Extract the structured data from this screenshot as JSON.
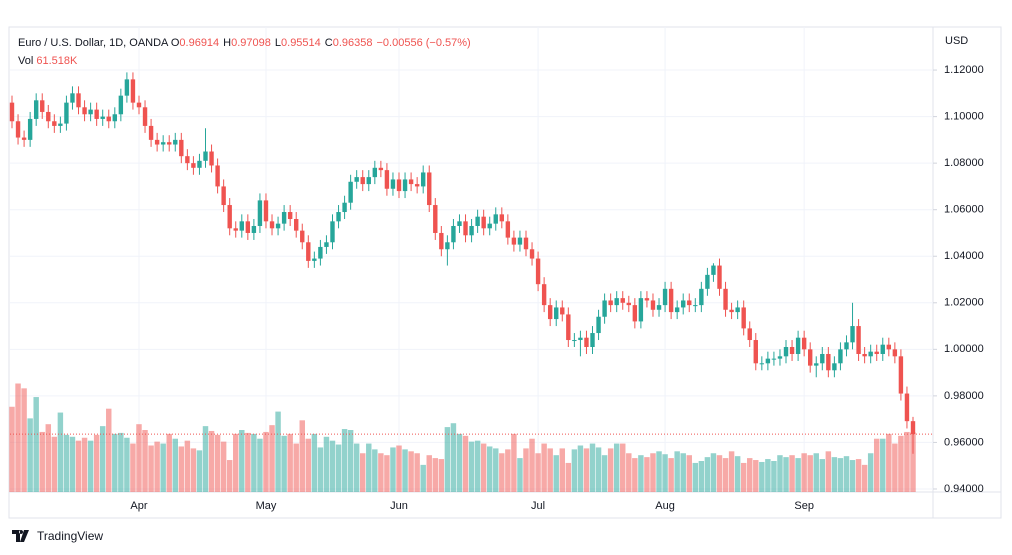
{
  "chart_data": {
    "type": "candlestick",
    "title": "Euro / U.S. Dollar, 1D, OANDA",
    "legend_labels": {
      "open": "O",
      "high": "H",
      "low": "L",
      "close": "C"
    },
    "change_label": "−0.00556 (−0.57%)",
    "volume_title": "Vol",
    "volume_value_label": "61.518K",
    "price_axis_unit": "USD",
    "brand": "TradingView",
    "up_color": "#26a69a",
    "down_color": "#ef5350",
    "grid": true,
    "ylim": [
      0.9387,
      1.1385
    ],
    "volume_ylim": [
      0,
      480
    ],
    "yticks": [
      {
        "value": 0.94,
        "label": "0.94000"
      },
      {
        "value": 0.96,
        "label": "0.96000"
      },
      {
        "value": 0.98,
        "label": "0.98000"
      },
      {
        "value": 1.0,
        "label": "1.00000"
      },
      {
        "value": 1.02,
        "label": "1.02000"
      },
      {
        "value": 1.04,
        "label": "1.04000"
      },
      {
        "value": 1.06,
        "label": "1.06000"
      },
      {
        "value": 1.08,
        "label": "1.08000"
      },
      {
        "value": 1.1,
        "label": "1.10000"
      },
      {
        "value": 1.12,
        "label": "1.12000"
      }
    ],
    "categories": [
      null,
      null,
      null,
      null,
      null,
      null,
      null,
      null,
      null,
      null,
      null,
      null,
      null,
      null,
      null,
      null,
      null,
      null,
      null,
      null,
      null,
      "Apr",
      null,
      null,
      null,
      null,
      null,
      null,
      null,
      null,
      null,
      null,
      null,
      null,
      null,
      null,
      null,
      null,
      null,
      null,
      null,
      null,
      "May",
      null,
      null,
      null,
      null,
      null,
      null,
      null,
      null,
      null,
      null,
      null,
      null,
      null,
      null,
      null,
      null,
      null,
      null,
      null,
      null,
      null,
      "Jun",
      null,
      null,
      null,
      null,
      null,
      null,
      null,
      null,
      null,
      null,
      null,
      null,
      null,
      null,
      null,
      null,
      null,
      null,
      null,
      null,
      null,
      null,
      "Jul",
      null,
      null,
      null,
      null,
      null,
      null,
      null,
      null,
      null,
      null,
      null,
      null,
      null,
      null,
      null,
      null,
      null,
      null,
      null,
      null,
      "Aug",
      null,
      null,
      null,
      null,
      null,
      null,
      null,
      null,
      null,
      null,
      null,
      null,
      null,
      null,
      null,
      null,
      null,
      null,
      null,
      null,
      null,
      null,
      "Sep",
      null,
      null,
      null,
      null,
      null,
      null,
      null,
      null,
      null,
      null,
      null,
      null,
      null,
      null,
      null,
      null,
      null,
      null
    ],
    "open": [
      1.106,
      1.098,
      1.091,
      1.09,
      1.099,
      1.107,
      1.102,
      1.098,
      1.096,
      1.097,
      1.106,
      1.11,
      1.104,
      1.101,
      1.103,
      1.099,
      1.1,
      1.098,
      1.101,
      1.109,
      1.116,
      1.106,
      1.104,
      1.096,
      1.09,
      1.088,
      1.089,
      1.088,
      1.09,
      1.083,
      1.08,
      1.078,
      1.081,
      1.085,
      1.079,
      1.07,
      1.062,
      1.052,
      1.051,
      1.055,
      1.05,
      1.053,
      1.064,
      1.055,
      1.052,
      1.054,
      1.059,
      1.056,
      1.051,
      1.046,
      1.038,
      1.039,
      1.044,
      1.046,
      1.055,
      1.059,
      1.063,
      1.072,
      1.074,
      1.071,
      1.074,
      1.078,
      1.077,
      1.069,
      1.073,
      1.068,
      1.073,
      1.071,
      1.07,
      1.076,
      1.062,
      1.05,
      1.043,
      1.046,
      1.053,
      1.055,
      1.049,
      1.053,
      1.057,
      1.052,
      1.054,
      1.058,
      1.055,
      1.048,
      1.045,
      1.048,
      1.043,
      1.039,
      1.028,
      1.019,
      1.013,
      1.018,
      1.015,
      1.004,
      1.004,
      1.005,
      1.001,
      1.007,
      1.014,
      1.021,
      1.019,
      1.022,
      1.02,
      1.019,
      1.012,
      1.022,
      1.021,
      1.017,
      1.019,
      1.026,
      1.016,
      1.018,
      1.021,
      1.019,
      1.019,
      1.026,
      1.032,
      1.036,
      1.026,
      1.017,
      1.016,
      1.018,
      1.009,
      1.004,
      0.994,
      0.994,
      0.996,
      0.996,
      0.997,
      1.001,
      0.998,
      1.005,
      1.0,
      0.993,
      0.994,
      0.998,
      0.991,
      0.994,
      1.0,
      1.003,
      1.01,
      0.998,
      0.997,
      0.999,
      0.998,
      1.002,
      1.0,
      0.997,
      0.981,
      0.96914
    ],
    "high": [
      1.109,
      1.101,
      1.094,
      1.102,
      1.11,
      1.11,
      1.105,
      1.101,
      1.1,
      1.109,
      1.113,
      1.113,
      1.107,
      1.106,
      1.106,
      1.103,
      1.103,
      1.104,
      1.112,
      1.119,
      1.119,
      1.109,
      1.107,
      1.099,
      1.093,
      1.092,
      1.092,
      1.093,
      1.093,
      1.086,
      1.083,
      1.084,
      1.095,
      1.088,
      1.082,
      1.073,
      1.065,
      1.055,
      1.058,
      1.058,
      1.056,
      1.067,
      1.067,
      1.058,
      1.057,
      1.062,
      1.062,
      1.059,
      1.054,
      1.049,
      1.042,
      1.047,
      1.049,
      1.058,
      1.062,
      1.066,
      1.075,
      1.077,
      1.077,
      1.077,
      1.081,
      1.081,
      1.08,
      1.076,
      1.076,
      1.076,
      1.076,
      1.074,
      1.079,
      1.079,
      1.065,
      1.053,
      1.049,
      1.056,
      1.058,
      1.058,
      1.056,
      1.06,
      1.06,
      1.057,
      1.061,
      1.061,
      1.058,
      1.051,
      1.051,
      1.051,
      1.046,
      1.042,
      1.031,
      1.022,
      1.021,
      1.021,
      1.018,
      1.007,
      1.008,
      1.008,
      1.01,
      1.017,
      1.024,
      1.024,
      1.025,
      1.025,
      1.023,
      1.022,
      1.025,
      1.025,
      1.024,
      1.022,
      1.029,
      1.029,
      1.021,
      1.024,
      1.024,
      1.022,
      1.029,
      1.035,
      1.037,
      1.039,
      1.029,
      1.02,
      1.021,
      1.021,
      1.012,
      1.007,
      0.997,
      0.999,
      0.999,
      1.0,
      1.004,
      1.004,
      1.008,
      1.008,
      1.003,
      0.997,
      1.001,
      1.001,
      0.997,
      1.003,
      1.006,
      1.02,
      1.013,
      1.001,
      1.002,
      1.002,
      1.005,
      1.005,
      1.003,
      1.0,
      0.984,
      0.97098
    ],
    "low": [
      1.095,
      1.088,
      1.087,
      1.087,
      1.096,
      1.099,
      1.095,
      1.093,
      1.093,
      1.094,
      1.103,
      1.101,
      1.098,
      1.098,
      1.096,
      1.096,
      1.095,
      1.095,
      1.098,
      1.106,
      1.103,
      1.101,
      1.093,
      1.087,
      1.085,
      1.085,
      1.085,
      1.085,
      1.08,
      1.077,
      1.075,
      1.075,
      1.078,
      1.076,
      1.067,
      1.059,
      1.049,
      1.048,
      1.048,
      1.047,
      1.047,
      1.05,
      1.052,
      1.049,
      1.049,
      1.051,
      1.053,
      1.048,
      1.043,
      1.035,
      1.035,
      1.036,
      1.041,
      1.043,
      1.052,
      1.056,
      1.06,
      1.069,
      1.068,
      1.068,
      1.071,
      1.074,
      1.066,
      1.066,
      1.065,
      1.065,
      1.068,
      1.067,
      1.067,
      1.059,
      1.047,
      1.04,
      1.036,
      1.043,
      1.05,
      1.046,
      1.046,
      1.05,
      1.049,
      1.049,
      1.051,
      1.052,
      1.045,
      1.042,
      1.042,
      1.04,
      1.036,
      1.025,
      1.016,
      1.01,
      1.01,
      1.012,
      1.001,
      1.001,
      0.997,
      0.998,
      0.998,
      1.004,
      1.011,
      1.016,
      1.016,
      1.017,
      1.016,
      1.009,
      1.009,
      1.018,
      1.014,
      1.014,
      1.016,
      1.013,
      1.013,
      1.015,
      1.016,
      1.016,
      1.016,
      1.023,
      1.029,
      1.023,
      1.014,
      1.013,
      1.013,
      1.006,
      1.001,
      0.991,
      0.991,
      0.991,
      0.993,
      0.993,
      0.994,
      0.995,
      0.995,
      0.997,
      0.99,
      0.988,
      0.991,
      0.988,
      0.988,
      0.991,
      0.997,
      1.0,
      0.995,
      0.994,
      0.994,
      0.995,
      0.995,
      0.997,
      0.994,
      0.978,
      0.966,
      0.95514
    ],
    "close": [
      1.098,
      1.091,
      1.09,
      1.099,
      1.107,
      1.102,
      1.098,
      1.096,
      1.097,
      1.106,
      1.11,
      1.104,
      1.101,
      1.103,
      1.099,
      1.1,
      1.098,
      1.101,
      1.109,
      1.116,
      1.106,
      1.104,
      1.096,
      1.09,
      1.088,
      1.089,
      1.088,
      1.09,
      1.083,
      1.08,
      1.078,
      1.081,
      1.085,
      1.079,
      1.07,
      1.062,
      1.052,
      1.051,
      1.055,
      1.05,
      1.053,
      1.064,
      1.055,
      1.052,
      1.054,
      1.059,
      1.056,
      1.051,
      1.046,
      1.038,
      1.039,
      1.044,
      1.046,
      1.055,
      1.059,
      1.063,
      1.072,
      1.074,
      1.071,
      1.074,
      1.078,
      1.077,
      1.069,
      1.073,
      1.068,
      1.073,
      1.071,
      1.07,
      1.076,
      1.062,
      1.05,
      1.043,
      1.046,
      1.053,
      1.055,
      1.049,
      1.053,
      1.057,
      1.052,
      1.054,
      1.058,
      1.055,
      1.048,
      1.045,
      1.048,
      1.043,
      1.039,
      1.028,
      1.019,
      1.013,
      1.018,
      1.015,
      1.004,
      1.004,
      1.005,
      1.001,
      1.007,
      1.014,
      1.021,
      1.019,
      1.022,
      1.02,
      1.019,
      1.012,
      1.022,
      1.021,
      1.017,
      1.019,
      1.026,
      1.016,
      1.018,
      1.021,
      1.019,
      1.019,
      1.026,
      1.032,
      1.036,
      1.026,
      1.017,
      1.016,
      1.018,
      1.009,
      1.004,
      0.994,
      0.994,
      0.996,
      0.996,
      0.997,
      1.001,
      0.998,
      1.005,
      1.0,
      0.993,
      0.994,
      0.998,
      0.991,
      0.994,
      1.0,
      1.003,
      1.01,
      0.998,
      0.997,
      0.999,
      0.998,
      1.002,
      1.0,
      0.997,
      0.981,
      0.96914,
      0.96358
    ],
    "volume": [
      88,
      112,
      107,
      76,
      98,
      62,
      70,
      57,
      82,
      59,
      57,
      53,
      56,
      53,
      59,
      68,
      86,
      60,
      61,
      56,
      50,
      70,
      64,
      48,
      52,
      50,
      60,
      55,
      47,
      53,
      45,
      43,
      68,
      63,
      59,
      52,
      33,
      60,
      64,
      61,
      60,
      55,
      62,
      69,
      83,
      58,
      60,
      50,
      74,
      55,
      60,
      46,
      57,
      53,
      49,
      65,
      64,
      50,
      40,
      50,
      44,
      40,
      38,
      46,
      48,
      44,
      42,
      40,
      28,
      38,
      35,
      34,
      67,
      71,
      60,
      58,
      52,
      53,
      50,
      47,
      45,
      40,
      44,
      60,
      35,
      45,
      55,
      40,
      50,
      45,
      38,
      45,
      30,
      44,
      48,
      45,
      50,
      46,
      38,
      45,
      50,
      50,
      40,
      35,
      38,
      36,
      40,
      42,
      39,
      35,
      42,
      40,
      38,
      30,
      32,
      36,
      40,
      38,
      35,
      42,
      37,
      30,
      35,
      33,
      31,
      34,
      32,
      38,
      36,
      38,
      35,
      40,
      38,
      40,
      34,
      42,
      36,
      35,
      37,
      33,
      34,
      28,
      40,
      55,
      55,
      60,
      50,
      58,
      62,
      61.518
    ]
  }
}
